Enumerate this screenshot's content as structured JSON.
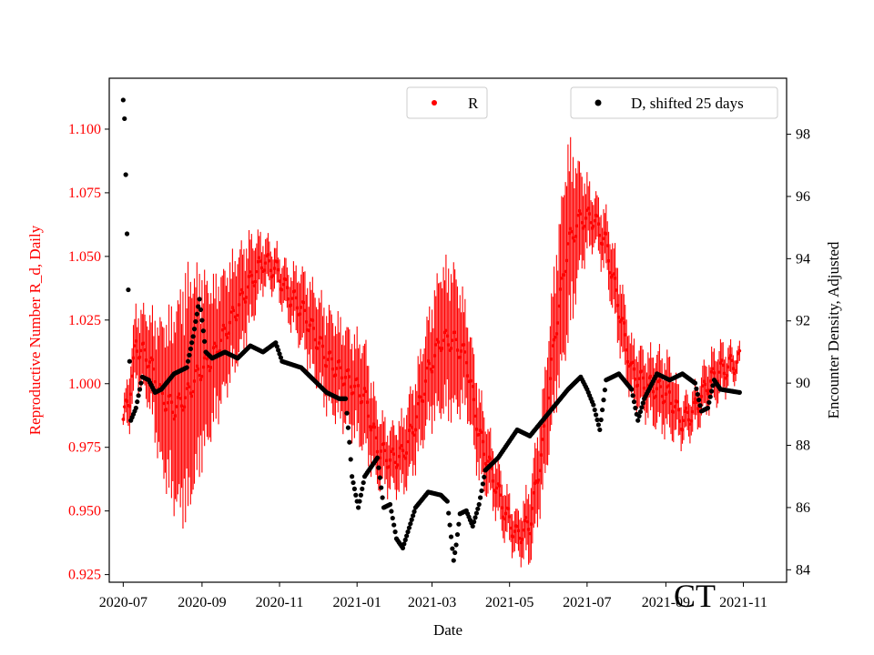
{
  "chart_data": {
    "type": "scatter",
    "title": "",
    "xlabel": "Date",
    "ylabel_left": "Reproductive Number R_d, Daily",
    "ylabel_right": "Encounter Density, Adjusted",
    "corner_label": "CT",
    "x_range": [
      "2020-06-20",
      "2021-12-05"
    ],
    "ylim_left": [
      0.922,
      1.12
    ],
    "ylim_right": [
      83.6,
      99.8
    ],
    "x_ticks": [
      "2020-07",
      "2020-09",
      "2020-11",
      "2021-01",
      "2021-03",
      "2021-05",
      "2021-07",
      "2021-09",
      "2021-11"
    ],
    "y_ticks_left": [
      "0.925",
      "0.950",
      "0.975",
      "1.000",
      "1.025",
      "1.050",
      "1.075",
      "1.100"
    ],
    "y_ticks_right": [
      "84",
      "86",
      "88",
      "90",
      "92",
      "94",
      "96",
      "98"
    ],
    "colors": {
      "r_series": "#ff0000",
      "d_series": "#000000",
      "left_axis": "#ff0000",
      "right_axis": "#000000"
    },
    "legend": [
      {
        "label": "R",
        "color": "#ff0000",
        "placement": "top-center"
      },
      {
        "label": "D, shifted 25 days",
        "color": "#000000",
        "placement": "top-right"
      }
    ],
    "series": [
      {
        "name": "R",
        "axis": "left",
        "note": "daily points with error bars; knots [day offset from 2020-07-01, R center, error half-width]",
        "knots": [
          [
            0,
            0.986,
            0.004
          ],
          [
            5,
            0.995,
            0.012
          ],
          [
            10,
            1.015,
            0.015
          ],
          [
            20,
            1.01,
            0.018
          ],
          [
            30,
            0.995,
            0.03
          ],
          [
            40,
            0.99,
            0.04
          ],
          [
            50,
            0.995,
            0.05
          ],
          [
            60,
            1.005,
            0.04
          ],
          [
            70,
            1.01,
            0.03
          ],
          [
            80,
            1.02,
            0.025
          ],
          [
            90,
            1.03,
            0.022
          ],
          [
            100,
            1.04,
            0.018
          ],
          [
            110,
            1.048,
            0.01
          ],
          [
            120,
            1.045,
            0.008
          ],
          [
            130,
            1.035,
            0.01
          ],
          [
            140,
            1.03,
            0.015
          ],
          [
            150,
            1.02,
            0.018
          ],
          [
            160,
            1.01,
            0.02
          ],
          [
            170,
            1.005,
            0.02
          ],
          [
            180,
            1.0,
            0.02
          ],
          [
            190,
            0.995,
            0.022
          ],
          [
            200,
            0.975,
            0.015
          ],
          [
            210,
            0.97,
            0.012
          ],
          [
            220,
            0.972,
            0.015
          ],
          [
            230,
            0.985,
            0.018
          ],
          [
            240,
            1.005,
            0.022
          ],
          [
            250,
            1.017,
            0.03
          ],
          [
            260,
            1.017,
            0.03
          ],
          [
            270,
            1.01,
            0.02
          ],
          [
            280,
            0.98,
            0.018
          ],
          [
            290,
            0.965,
            0.012
          ],
          [
            300,
            0.95,
            0.01
          ],
          [
            310,
            0.94,
            0.008
          ],
          [
            320,
            0.945,
            0.015
          ],
          [
            330,
            0.975,
            0.02
          ],
          [
            340,
            1.02,
            0.03
          ],
          [
            350,
            1.055,
            0.04
          ],
          [
            360,
            1.065,
            0.02
          ],
          [
            370,
            1.065,
            0.01
          ],
          [
            380,
            1.055,
            0.012
          ],
          [
            390,
            1.03,
            0.015
          ],
          [
            400,
            1.005,
            0.012
          ],
          [
            410,
            1.0,
            0.012
          ],
          [
            420,
            0.998,
            0.015
          ],
          [
            430,
            0.995,
            0.015
          ],
          [
            440,
            0.985,
            0.008
          ],
          [
            450,
            0.99,
            0.008
          ],
          [
            460,
            1.0,
            0.01
          ],
          [
            470,
            1.005,
            0.01
          ],
          [
            485,
            1.009,
            0.004
          ]
        ]
      },
      {
        "name": "D, shifted 25 days",
        "axis": "right",
        "note": "daily points; knots [day offset from 2020-07-01, density]",
        "knots": [
          [
            0,
            99.1
          ],
          [
            1,
            98.5
          ],
          [
            2,
            96.7
          ],
          [
            3,
            94.8
          ],
          [
            4,
            93.0
          ],
          [
            5,
            90.7
          ],
          [
            6,
            88.8
          ],
          [
            10,
            89.2
          ],
          [
            15,
            90.2
          ],
          [
            20,
            90.1
          ],
          [
            25,
            89.7
          ],
          [
            30,
            89.8
          ],
          [
            40,
            90.3
          ],
          [
            50,
            90.5
          ],
          [
            55,
            91.5
          ],
          [
            60,
            92.7
          ],
          [
            65,
            91.0
          ],
          [
            70,
            90.8
          ],
          [
            80,
            91.0
          ],
          [
            90,
            90.8
          ],
          [
            100,
            91.2
          ],
          [
            110,
            91.0
          ],
          [
            120,
            91.3
          ],
          [
            125,
            90.7
          ],
          [
            140,
            90.5
          ],
          [
            150,
            90.1
          ],
          [
            160,
            89.7
          ],
          [
            170,
            89.5
          ],
          [
            175,
            89.5
          ],
          [
            178,
            88.1
          ],
          [
            180,
            87.0
          ],
          [
            185,
            86.0
          ],
          [
            190,
            87.0
          ],
          [
            200,
            87.6
          ],
          [
            205,
            86.0
          ],
          [
            210,
            86.1
          ],
          [
            215,
            85.0
          ],
          [
            220,
            84.7
          ],
          [
            230,
            86.0
          ],
          [
            240,
            86.5
          ],
          [
            250,
            86.4
          ],
          [
            255,
            86.2
          ],
          [
            260,
            84.3
          ],
          [
            262,
            84.8
          ],
          [
            265,
            85.8
          ],
          [
            270,
            85.9
          ],
          [
            275,
            85.4
          ],
          [
            280,
            86.1
          ],
          [
            285,
            87.2
          ],
          [
            295,
            87.6
          ],
          [
            300,
            87.9
          ],
          [
            310,
            88.5
          ],
          [
            320,
            88.3
          ],
          [
            330,
            88.8
          ],
          [
            340,
            89.3
          ],
          [
            350,
            89.8
          ],
          [
            360,
            90.2
          ],
          [
            365,
            89.8
          ],
          [
            370,
            89.3
          ],
          [
            375,
            88.5
          ],
          [
            380,
            90.1
          ],
          [
            390,
            90.3
          ],
          [
            400,
            89.8
          ],
          [
            405,
            88.8
          ],
          [
            410,
            89.5
          ],
          [
            420,
            90.3
          ],
          [
            430,
            90.1
          ],
          [
            440,
            90.3
          ],
          [
            450,
            90.0
          ],
          [
            455,
            89.1
          ],
          [
            460,
            89.2
          ],
          [
            465,
            90.1
          ],
          [
            470,
            89.8
          ],
          [
            485,
            89.7
          ]
        ]
      }
    ]
  }
}
